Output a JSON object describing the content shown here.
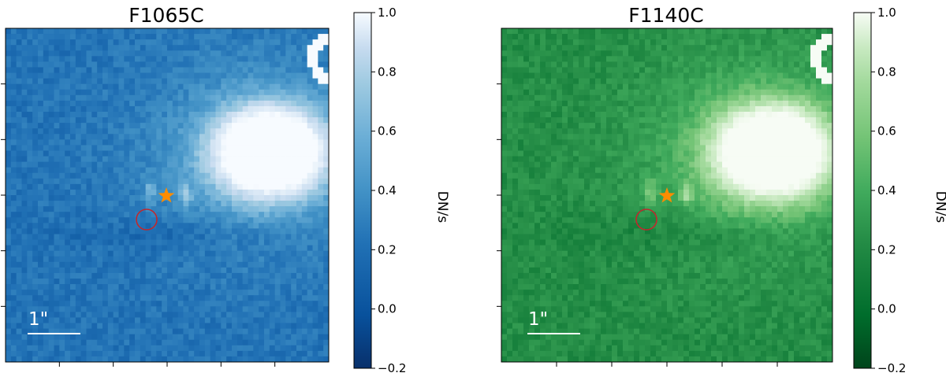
{
  "panels": [
    {
      "title": "F1065C",
      "colormap": "blues",
      "colors": {
        "low": "#08306b",
        "mid": "#4292c6",
        "high": "#f7fbff"
      },
      "colorbar": {
        "label": "DN/s",
        "ticks": [
          "1.0",
          "0.8",
          "0.6",
          "0.4",
          "0.2",
          "0.0",
          "−0.2"
        ]
      },
      "scalebar_label": "1\"",
      "star_icon": "star-icon",
      "circle_icon": "circle-icon"
    },
    {
      "title": "F1140C",
      "colormap": "greens",
      "colors": {
        "low": "#00441b",
        "mid": "#41ab5d",
        "high": "#f7fcf5"
      },
      "colorbar": {
        "label": "DN/s",
        "ticks": [
          "1.0",
          "0.8",
          "0.6",
          "0.4",
          "0.2",
          "0.0",
          "−0.2"
        ]
      },
      "scalebar_label": "1\"",
      "star_icon": "star-icon",
      "circle_icon": "circle-icon"
    }
  ],
  "marker_colors": {
    "star": "#ff8c00",
    "circle": "#c0282d"
  }
}
